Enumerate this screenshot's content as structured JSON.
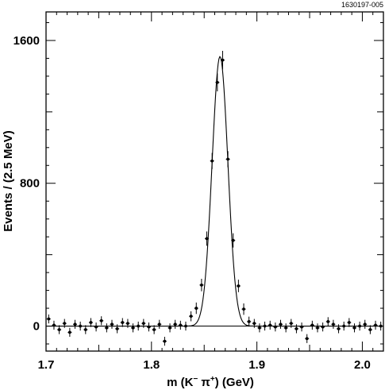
{
  "figure_id": "1630197-005",
  "chart_data": {
    "type": "scatter",
    "title": "",
    "xlabel": {
      "prefix": "m (K",
      "sup1": "−",
      "mid": " π",
      "sup2": "+",
      "suffix": ") (GeV)"
    },
    "ylabel": "Events / (2.5 MeV)",
    "xlim": [
      1.7,
      2.02
    ],
    "ylim": [
      -140,
      1760
    ],
    "x_ticks": [
      1.7,
      1.8,
      1.9,
      2.0
    ],
    "x_tick_labels": [
      "1.7",
      "1.8",
      "1.9",
      "2.0"
    ],
    "y_ticks": [
      0,
      800,
      1600
    ],
    "y_tick_labels": [
      "0",
      "800",
      "1600"
    ],
    "grid": false,
    "legend": "none",
    "fit": {
      "type": "gaussian_peak_on_flat_background",
      "peak_x": 1.865,
      "peak_y": 1510,
      "sigma": 0.0075,
      "background": 0
    },
    "series": [
      {
        "style": "points_with_error_bars",
        "x": [
          1.7025,
          1.7075,
          1.7125,
          1.7175,
          1.7225,
          1.7275,
          1.7325,
          1.7375,
          1.7425,
          1.7475,
          1.7525,
          1.7575,
          1.7625,
          1.7675,
          1.7725,
          1.7775,
          1.7825,
          1.7875,
          1.7925,
          1.7975,
          1.8025,
          1.8075,
          1.8125,
          1.8175,
          1.8225,
          1.8275,
          1.8325,
          1.8375,
          1.8425,
          1.8475,
          1.8525,
          1.8575,
          1.8625,
          1.8675,
          1.8725,
          1.8775,
          1.8825,
          1.8875,
          1.8925,
          1.8975,
          1.9025,
          1.9075,
          1.9125,
          1.9175,
          1.9225,
          1.9275,
          1.9325,
          1.9375,
          1.9425,
          1.9475,
          1.9525,
          1.9575,
          1.9625,
          1.9675,
          1.9725,
          1.9775,
          1.9825,
          1.9875,
          1.9925,
          1.9975,
          2.0025,
          2.0075,
          2.0125,
          2.0175
        ],
        "y": [
          40,
          5,
          -20,
          15,
          -35,
          10,
          0,
          -20,
          20,
          -5,
          30,
          -10,
          10,
          -15,
          20,
          15,
          -10,
          0,
          15,
          -5,
          -20,
          10,
          -85,
          -10,
          10,
          5,
          0,
          55,
          100,
          230,
          490,
          925,
          1365,
          1490,
          935,
          480,
          225,
          95,
          25,
          15,
          -10,
          0,
          5,
          -5,
          10,
          -10,
          15,
          -15,
          -5,
          -70,
          5,
          -10,
          -5,
          25,
          10,
          -15,
          0,
          20,
          -10,
          0,
          10,
          -20,
          5,
          0
        ],
        "err": [
          25,
          25,
          25,
          25,
          25,
          25,
          25,
          25,
          25,
          25,
          25,
          25,
          25,
          25,
          25,
          25,
          25,
          25,
          25,
          25,
          25,
          25,
          25,
          25,
          25,
          25,
          25,
          28,
          32,
          35,
          40,
          45,
          50,
          52,
          45,
          40,
          35,
          32,
          28,
          25,
          25,
          25,
          25,
          25,
          25,
          25,
          25,
          25,
          25,
          25,
          25,
          25,
          25,
          25,
          25,
          25,
          25,
          25,
          25,
          25,
          25,
          25,
          25,
          25
        ]
      }
    ]
  }
}
